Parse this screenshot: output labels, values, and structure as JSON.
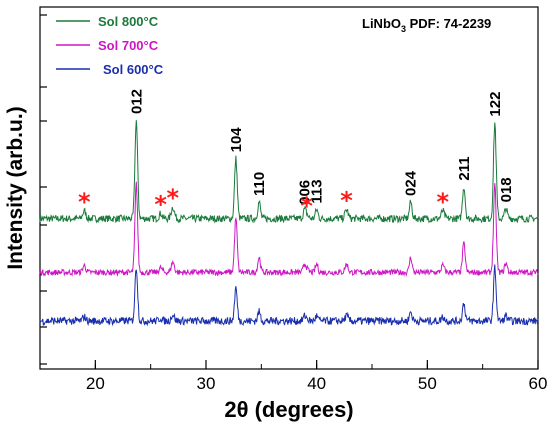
{
  "chart_data": {
    "type": "line",
    "xlabel": "2θ (degrees)",
    "ylabel": "Intensity (arb.u.)",
    "xlim": [
      15,
      60
    ],
    "x_ticks": [
      20,
      30,
      40,
      50,
      60
    ],
    "annotation": {
      "text": "LiNbO",
      "sub": "3",
      "suffix": " PDF: 74-2239"
    },
    "series": [
      {
        "name": "Sol 800°C",
        "color": "#1b7a3c",
        "baseline": 8.0,
        "noise": 0.55,
        "amp": 1.0
      },
      {
        "name": "Sol 700°C",
        "color": "#cc18c4",
        "baseline": 3.8,
        "noise": 0.45,
        "amp": 0.9
      },
      {
        "name": "Sol 600°C",
        "color": "#1a2fae",
        "baseline": 0.0,
        "noise": 0.6,
        "amp": 0.55
      }
    ],
    "peaks": [
      {
        "pos": 23.7,
        "height": 7.7,
        "label": "012"
      },
      {
        "pos": 32.7,
        "height": 4.7,
        "label": "104"
      },
      {
        "pos": 34.8,
        "height": 1.3,
        "label": "110"
      },
      {
        "pos": 38.9,
        "height": 0.6,
        "label": "006"
      },
      {
        "pos": 40.0,
        "height": 0.7,
        "label": "113"
      },
      {
        "pos": 48.5,
        "height": 1.3,
        "label": "024"
      },
      {
        "pos": 53.3,
        "height": 2.5,
        "label": "211"
      },
      {
        "pos": 56.1,
        "height": 7.5,
        "label": "122"
      },
      {
        "pos": 57.1,
        "height": 0.8,
        "label": "018"
      }
    ],
    "impurity_peaks": [
      {
        "pos": 19.0,
        "height": 0.6
      },
      {
        "pos": 25.9,
        "height": 0.4
      },
      {
        "pos": 27.0,
        "height": 0.9
      },
      {
        "pos": 39.1,
        "height": 0.3
      },
      {
        "pos": 42.7,
        "height": 0.7
      },
      {
        "pos": 51.4,
        "height": 0.6
      }
    ],
    "impurity_marker": "*",
    "grid": false,
    "legend_position": "top-left"
  }
}
